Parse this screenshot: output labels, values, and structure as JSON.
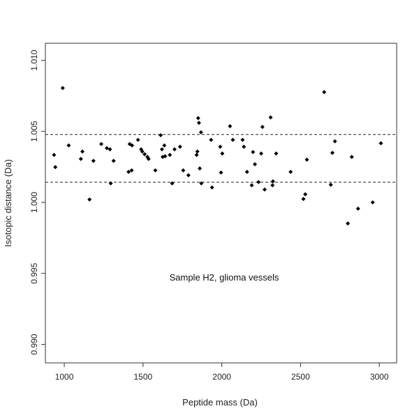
{
  "chart_data": {
    "type": "scatter",
    "title": "",
    "xlabel": "Peptide mass (Da)",
    "ylabel": "Isotopic distance (Da)",
    "xlim": [
      880,
      3110
    ],
    "ylim": [
      0.9887,
      1.0112
    ],
    "x_ticks": [
      1000,
      1500,
      2000,
      2500,
      3000
    ],
    "x_tick_labels": [
      "1000",
      "1500",
      "2000",
      "2500",
      "3000"
    ],
    "y_ticks": [
      0.99,
      0.995,
      1.0,
      1.005,
      1.01
    ],
    "y_tick_labels": [
      "0.990",
      "0.995",
      "1.000",
      "1.005",
      "1.010"
    ],
    "grid": false,
    "annotation": "Sample H2, glioma vessels",
    "reference_lines": [
      {
        "y": 1.00478,
        "style": "dashed"
      },
      {
        "y": 1.00142,
        "style": "dashed"
      }
    ],
    "points": [
      {
        "x": 935,
        "y": 1.00334
      },
      {
        "x": 943,
        "y": 1.00248
      },
      {
        "x": 990,
        "y": 1.00805
      },
      {
        "x": 1028,
        "y": 1.00401
      },
      {
        "x": 1105,
        "y": 1.00306
      },
      {
        "x": 1115,
        "y": 1.00358
      },
      {
        "x": 1160,
        "y": 1.0002
      },
      {
        "x": 1185,
        "y": 1.00292
      },
      {
        "x": 1235,
        "y": 1.00411
      },
      {
        "x": 1270,
        "y": 1.00382
      },
      {
        "x": 1290,
        "y": 1.00373
      },
      {
        "x": 1295,
        "y": 1.00134
      },
      {
        "x": 1313,
        "y": 1.00292
      },
      {
        "x": 1408,
        "y": 1.00215
      },
      {
        "x": 1415,
        "y": 1.00411
      },
      {
        "x": 1428,
        "y": 1.00225
      },
      {
        "x": 1430,
        "y": 1.00401
      },
      {
        "x": 1468,
        "y": 1.0044
      },
      {
        "x": 1488,
        "y": 1.00373
      },
      {
        "x": 1495,
        "y": 1.00358
      },
      {
        "x": 1510,
        "y": 1.00339
      },
      {
        "x": 1528,
        "y": 1.0032
      },
      {
        "x": 1535,
        "y": 1.00306
      },
      {
        "x": 1578,
        "y": 1.00225
      },
      {
        "x": 1612,
        "y": 1.00473
      },
      {
        "x": 1620,
        "y": 1.00373
      },
      {
        "x": 1625,
        "y": 1.0032
      },
      {
        "x": 1635,
        "y": 1.00401
      },
      {
        "x": 1640,
        "y": 1.00325
      },
      {
        "x": 1670,
        "y": 1.00334
      },
      {
        "x": 1685,
        "y": 1.00134
      },
      {
        "x": 1700,
        "y": 1.00373
      },
      {
        "x": 1735,
        "y": 1.00392
      },
      {
        "x": 1755,
        "y": 1.00225
      },
      {
        "x": 1788,
        "y": 1.00191
      },
      {
        "x": 1840,
        "y": 1.00334
      },
      {
        "x": 1845,
        "y": 1.00358
      },
      {
        "x": 1850,
        "y": 1.00593
      },
      {
        "x": 1855,
        "y": 1.0056
      },
      {
        "x": 1860,
        "y": 1.00239
      },
      {
        "x": 1868,
        "y": 1.00493
      },
      {
        "x": 1870,
        "y": 1.00134
      },
      {
        "x": 1932,
        "y": 1.0044
      },
      {
        "x": 1938,
        "y": 1.00105
      },
      {
        "x": 1990,
        "y": 1.00392
      },
      {
        "x": 1995,
        "y": 1.0021
      },
      {
        "x": 2003,
        "y": 1.00344
      },
      {
        "x": 2052,
        "y": 1.00536
      },
      {
        "x": 2070,
        "y": 1.0044
      },
      {
        "x": 2132,
        "y": 1.0044
      },
      {
        "x": 2140,
        "y": 1.00392
      },
      {
        "x": 2160,
        "y": 1.00215
      },
      {
        "x": 2190,
        "y": 1.0012
      },
      {
        "x": 2198,
        "y": 1.00354
      },
      {
        "x": 2210,
        "y": 1.00268
      },
      {
        "x": 2233,
        "y": 1.00143
      },
      {
        "x": 2250,
        "y": 1.00344
      },
      {
        "x": 2258,
        "y": 1.00531
      },
      {
        "x": 2272,
        "y": 1.0009
      },
      {
        "x": 2310,
        "y": 1.00598
      },
      {
        "x": 2322,
        "y": 1.0012
      },
      {
        "x": 2325,
        "y": 1.00148
      },
      {
        "x": 2345,
        "y": 1.00344
      },
      {
        "x": 2437,
        "y": 1.00215
      },
      {
        "x": 2518,
        "y": 1.00024
      },
      {
        "x": 2530,
        "y": 1.00057
      },
      {
        "x": 2540,
        "y": 1.00301
      },
      {
        "x": 2650,
        "y": 1.00776
      },
      {
        "x": 2692,
        "y": 1.00124
      },
      {
        "x": 2702,
        "y": 1.00349
      },
      {
        "x": 2718,
        "y": 1.0043
      },
      {
        "x": 2800,
        "y": 0.99851
      },
      {
        "x": 2825,
        "y": 1.0032
      },
      {
        "x": 2865,
        "y": 0.99956
      },
      {
        "x": 2958,
        "y": 1.0
      },
      {
        "x": 3010,
        "y": 1.00416
      }
    ]
  }
}
